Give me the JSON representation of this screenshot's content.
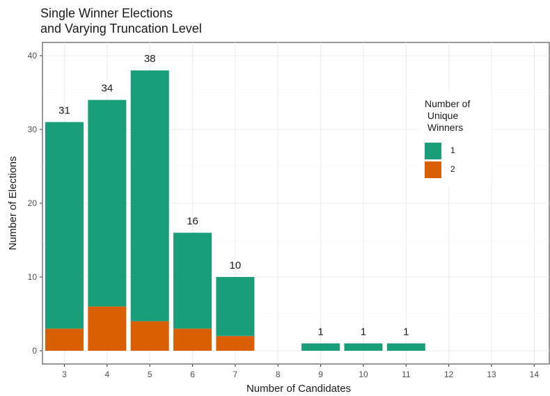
{
  "chart_data": {
    "type": "bar",
    "stacked": true,
    "title_lines": [
      "Single Winner Elections",
      "and Varying Truncation Level"
    ],
    "xlabel": "Number of Candidates",
    "ylabel": "Number of Elections",
    "categories": [
      "3",
      "4",
      "5",
      "6",
      "7",
      "8",
      "9",
      "10",
      "11",
      "12",
      "13",
      "14"
    ],
    "ylim": [
      0,
      41
    ],
    "y_ticks": [
      0,
      10,
      20,
      30,
      40
    ],
    "grid": true,
    "legend": {
      "title": "Number of\n Unique\n Winners",
      "placement": "top-right inside plot",
      "entries": [
        {
          "label": "1",
          "color": "#1a9e7a"
        },
        {
          "label": "2",
          "color": "#d95f02"
        }
      ]
    },
    "series": [
      {
        "name": "1",
        "color": "#1a9e7a",
        "values": [
          28,
          28,
          34,
          13,
          8,
          null,
          1,
          1,
          1,
          null,
          null,
          null
        ]
      },
      {
        "name": "2",
        "color": "#d95f02",
        "values": [
          3,
          6,
          4,
          3,
          2,
          null,
          0,
          0,
          0,
          null,
          null,
          null
        ]
      }
    ],
    "totals": [
      31,
      34,
      38,
      16,
      10,
      null,
      1,
      1,
      1,
      null,
      null,
      null
    ]
  }
}
